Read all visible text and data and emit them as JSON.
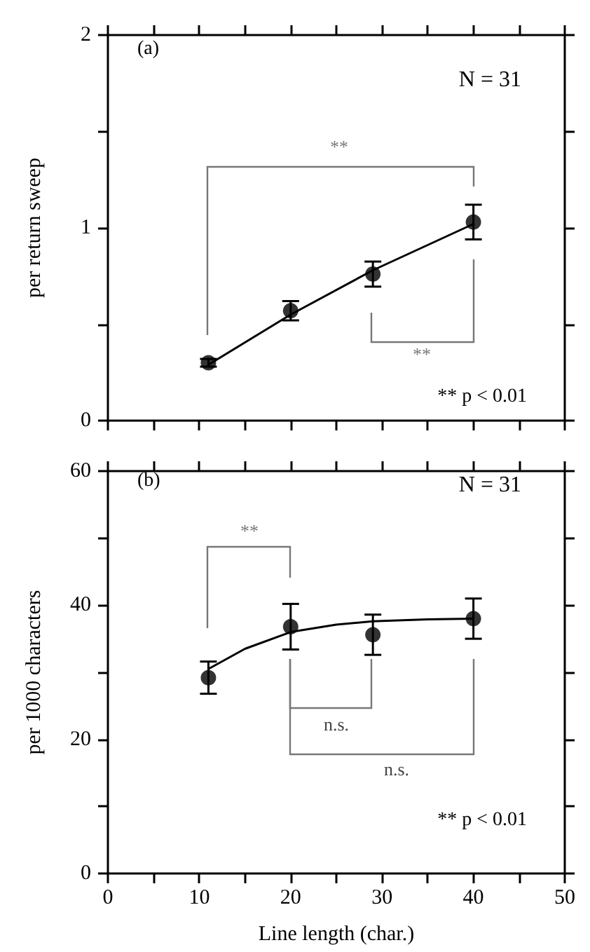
{
  "chart_data": [
    {
      "type": "scatter",
      "ylabel": "per return sweep",
      "x": [
        11,
        20,
        29,
        40
      ],
      "series": [
        {
          "type": "scatter",
          "color": "#000000",
          "values": [
            0.3,
            0.57,
            0.76,
            1.03
          ],
          "errors": [
            0.02,
            0.05,
            0.065,
            0.09
          ]
        },
        {
          "type": "line",
          "color": "#000000",
          "marker": "none",
          "x": [
            11,
            20,
            29,
            40
          ],
          "values": [
            0.29,
            0.55,
            0.78,
            1.02
          ]
        }
      ],
      "xlim": [
        0,
        50
      ],
      "xticks": [
        0,
        {
          "value": 5,
          "label": null
        },
        10,
        {
          "value": 15,
          "label": null
        },
        20,
        {
          "value": 25,
          "label": null
        },
        30,
        {
          "value": 35,
          "label": null
        },
        40,
        {
          "value": 45,
          "label": null
        },
        50
      ],
      "ylim": [
        0,
        2
      ],
      "yticks": [
        0,
        {
          "value": 0.5,
          "label": null
        },
        1,
        {
          "value": 1.5,
          "label": null
        },
        2
      ],
      "tick_labels": "y",
      "marker": "circle",
      "grid": false,
      "annotations": [
        "(a)",
        "N = 31",
        "**",
        "**",
        "** p < 0.01"
      ]
    },
    {
      "type": "scatter",
      "ylabel": "per 1000 characters",
      "xlabel": "Line length (char.)",
      "x": [
        11,
        20,
        29,
        40
      ],
      "series": [
        {
          "type": "scatter",
          "color": "#000000",
          "values": [
            29.2,
            36.8,
            35.6,
            38.0
          ],
          "errors": [
            2.4,
            3.4,
            3,
            3
          ]
        },
        {
          "type": "line",
          "color": "#000000",
          "marker": "none",
          "x": [
            11,
            15,
            20,
            25,
            29,
            35,
            40
          ],
          "values": [
            30.5,
            33.5,
            36.0,
            37.1,
            37.6,
            37.9,
            38.0
          ]
        }
      ],
      "xlim": [
        0,
        50
      ],
      "xticks": [
        0,
        {
          "value": 5,
          "label": null
        },
        10,
        {
          "value": 15,
          "label": null
        },
        20,
        {
          "value": 25,
          "label": null
        },
        30,
        {
          "value": 35,
          "label": null
        },
        40,
        {
          "value": 45,
          "label": null
        },
        50
      ],
      "ylim": [
        0,
        60
      ],
      "yticks": [
        0,
        {
          "value": 10,
          "label": null
        },
        20,
        {
          "value": 30,
          "label": null
        },
        40,
        {
          "value": 50,
          "label": null
        },
        60
      ],
      "marker": "circle",
      "grid": false,
      "annotations": [
        "(b)",
        "N = 31",
        "**",
        "n.s.",
        "n.s.",
        "** p < 0.01"
      ]
    }
  ]
}
